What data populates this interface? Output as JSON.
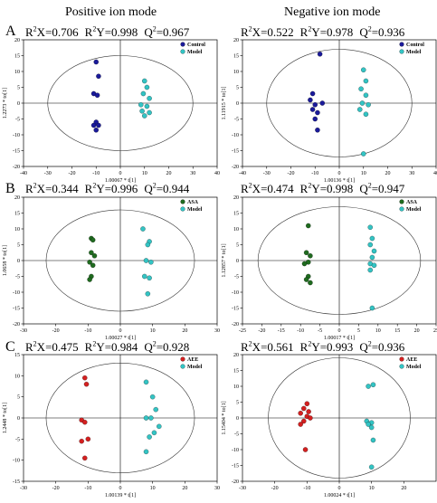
{
  "titles": {
    "left": "Positive ion mode",
    "right": "Negative ion mode"
  },
  "row_letters": [
    "A",
    "B",
    "C"
  ],
  "colors": {
    "control": "#1a1a9a",
    "model": "#33c4c4",
    "asa": "#1f6b1f",
    "aee": "#d42020"
  },
  "chart_data": [
    {
      "id": "A-pos",
      "type": "scatter",
      "row": 0,
      "col": 0,
      "stats": {
        "r2x": "=0.706",
        "r2y": "=0.998",
        "q2": "=0.967"
      },
      "xlabel": "1.00067 * t[1]",
      "ylabel": "1.2273 * to[1]",
      "xlim": [
        -40,
        40
      ],
      "ylim": [
        -20,
        20
      ],
      "xticks": [
        -40,
        -30,
        -20,
        -10,
        0,
        10,
        20,
        30,
        40
      ],
      "yticks": [
        -20,
        -15,
        -10,
        -5,
        0,
        5,
        10,
        15,
        20
      ],
      "ellipse": {
        "rx": 30,
        "ry": 15
      },
      "series": [
        {
          "name": "Control",
          "color": "#1a1a9a",
          "points": [
            [
              -10,
              13
            ],
            [
              -9,
              8.5
            ],
            [
              -11,
              3
            ],
            [
              -9.5,
              2.5
            ],
            [
              -10,
              -6
            ],
            [
              -11,
              -7
            ],
            [
              -9,
              -7
            ],
            [
              -10,
              -8.5
            ]
          ]
        },
        {
          "name": "Model",
          "color": "#33c4c4",
          "points": [
            [
              10,
              7
            ],
            [
              11,
              5
            ],
            [
              9.5,
              3
            ],
            [
              12,
              1.5
            ],
            [
              8.5,
              -0.5
            ],
            [
              11,
              -1
            ],
            [
              9,
              -2.5
            ],
            [
              12,
              -3
            ],
            [
              10,
              -4
            ]
          ]
        }
      ]
    },
    {
      "id": "A-neg",
      "type": "scatter",
      "row": 0,
      "col": 1,
      "stats": {
        "r2x": "=0.522",
        "r2y": "=0.978",
        "q2": "=0.936"
      },
      "xlabel": "1.00136 * t[1]",
      "ylabel": "1.11915 * to[1]",
      "xlim": [
        -40,
        40
      ],
      "ylim": [
        -20,
        20
      ],
      "xticks": [
        -40,
        -30,
        -20,
        -10,
        0,
        10,
        20,
        30,
        40
      ],
      "yticks": [
        -20,
        -15,
        -10,
        -5,
        0,
        5,
        10,
        15,
        20
      ],
      "ellipse": {
        "rx": 30,
        "ry": 17
      },
      "series": [
        {
          "name": "Control",
          "color": "#1a1a9a",
          "points": [
            [
              -8,
              15.5
            ],
            [
              -11,
              3
            ],
            [
              -12,
              1
            ],
            [
              -7,
              0
            ],
            [
              -10,
              -0.5
            ],
            [
              -11,
              -2
            ],
            [
              -9,
              -3
            ],
            [
              -10,
              -5
            ],
            [
              -9,
              -8.5
            ]
          ]
        },
        {
          "name": "Model",
          "color": "#33c4c4",
          "points": [
            [
              10,
              10.5
            ],
            [
              11,
              7
            ],
            [
              9,
              4.5
            ],
            [
              11,
              2.5
            ],
            [
              9.5,
              0
            ],
            [
              12,
              -0.5
            ],
            [
              8.5,
              -2
            ],
            [
              11,
              -3.5
            ],
            [
              10,
              -16
            ]
          ]
        }
      ]
    },
    {
      "id": "B-pos",
      "type": "scatter",
      "row": 1,
      "col": 0,
      "stats": {
        "r2x": "=0.344",
        "r2y": "=0.996",
        "q2": "=0.944"
      },
      "xlabel": "1.00027 * t[1]",
      "ylabel": "1.0658 * to[1]",
      "xlim": [
        -30,
        30
      ],
      "ylim": [
        -20,
        20
      ],
      "xticks": [
        -30,
        -20,
        -10,
        0,
        10,
        20,
        30
      ],
      "yticks": [
        -20,
        -15,
        -10,
        -5,
        0,
        5,
        10,
        15,
        20
      ],
      "ellipse": {
        "rx": 23,
        "ry": 16
      },
      "series": [
        {
          "name": "ASA",
          "color": "#1f6b1f",
          "points": [
            [
              -9,
              7
            ],
            [
              -8.5,
              6.5
            ],
            [
              -9,
              2.5
            ],
            [
              -8,
              1.5
            ],
            [
              -9.5,
              -0.5
            ],
            [
              -8.5,
              -1.5
            ],
            [
              -9,
              -5
            ],
            [
              -9.5,
              -6
            ]
          ]
        },
        {
          "name": "Model",
          "color": "#33c4c4",
          "points": [
            [
              7,
              10
            ],
            [
              9,
              6
            ],
            [
              8.5,
              5
            ],
            [
              8,
              0
            ],
            [
              9.5,
              -0.5
            ],
            [
              7.5,
              -5
            ],
            [
              9,
              -5.5
            ],
            [
              8.5,
              -10.5
            ]
          ]
        }
      ]
    },
    {
      "id": "B-neg",
      "type": "scatter",
      "row": 1,
      "col": 1,
      "stats": {
        "r2x": "=0.474",
        "r2y": "=0.998",
        "q2": "=0.947"
      },
      "xlabel": "1.00017 * t[1]",
      "ylabel": "1.12857 * to[1]",
      "xlim": [
        -25,
        25
      ],
      "ylim": [
        -20,
        20
      ],
      "xticks": [
        -25,
        -20,
        -15,
        -10,
        -5,
        0,
        5,
        10,
        15,
        20,
        25
      ],
      "yticks": [
        -20,
        -15,
        -10,
        -5,
        0,
        5,
        10,
        15,
        20
      ],
      "ellipse": {
        "rx": 21,
        "ry": 17
      },
      "series": [
        {
          "name": "ASA",
          "color": "#1f6b1f",
          "points": [
            [
              -8,
              11
            ],
            [
              -8.5,
              2.5
            ],
            [
              -7.5,
              1.5
            ],
            [
              -8,
              -0.5
            ],
            [
              -9,
              -1
            ],
            [
              -8,
              -5
            ],
            [
              -8.5,
              -6
            ],
            [
              -7.5,
              -7
            ]
          ]
        },
        {
          "name": "Model",
          "color": "#33c4c4",
          "points": [
            [
              8,
              10.5
            ],
            [
              8.5,
              7
            ],
            [
              8,
              5
            ],
            [
              9,
              3
            ],
            [
              8.5,
              1
            ],
            [
              8,
              -1
            ],
            [
              9,
              -1.5
            ],
            [
              8,
              -3
            ],
            [
              8.5,
              -15
            ]
          ]
        }
      ]
    },
    {
      "id": "C-pos",
      "type": "scatter",
      "row": 2,
      "col": 0,
      "stats": {
        "r2x": "=0.475",
        "r2y": "=0.984",
        "q2": "=0.928"
      },
      "xlabel": "1.00139 * t[1]",
      "ylabel": "1.2448 * to[1]",
      "xlim": [
        -30,
        30
      ],
      "ylim": [
        -15,
        15
      ],
      "xticks": [
        -30,
        -20,
        -10,
        0,
        10,
        20,
        30
      ],
      "yticks": [
        -15,
        -10,
        -5,
        0,
        5,
        10,
        15
      ],
      "ellipse": {
        "rx": 23,
        "ry": 13
      },
      "series": [
        {
          "name": "AEE",
          "color": "#d42020",
          "points": [
            [
              -11,
              9.5
            ],
            [
              -10.5,
              8
            ],
            [
              -12,
              -0.5
            ],
            [
              -11,
              -1
            ],
            [
              -12,
              -5.5
            ],
            [
              -10,
              -5
            ],
            [
              -11,
              -9.5
            ]
          ]
        },
        {
          "name": "Model",
          "color": "#33c4c4",
          "points": [
            [
              8,
              8.5
            ],
            [
              10,
              5
            ],
            [
              11,
              2
            ],
            [
              8,
              0
            ],
            [
              9.5,
              0
            ],
            [
              12,
              -2
            ],
            [
              10.5,
              -3.5
            ],
            [
              9,
              -4.5
            ],
            [
              8,
              -8
            ]
          ]
        }
      ]
    },
    {
      "id": "C-neg",
      "type": "scatter",
      "row": 2,
      "col": 1,
      "stats": {
        "r2x": "=0.561",
        "r2y": "=0.993",
        "q2": "=0.936"
      },
      "xlabel": "1.00024 * t[1]",
      "ylabel": "1.15404 * to[1]",
      "xlim": [
        -30,
        30
      ],
      "ylim": [
        -20,
        20
      ],
      "xticks": [
        -30,
        -20,
        -10,
        0,
        10,
        20
      ],
      "yticks": [
        -20,
        -15,
        -10,
        -5,
        0,
        5,
        10,
        15,
        20
      ],
      "ellipse": {
        "rx": 22,
        "ry": 19
      },
      "series": [
        {
          "name": "AEE",
          "color": "#d42020",
          "points": [
            [
              -10,
              4.5
            ],
            [
              -11,
              3
            ],
            [
              -9.5,
              2
            ],
            [
              -12,
              1.5
            ],
            [
              -10,
              0.5
            ],
            [
              -9,
              0
            ],
            [
              -11,
              -1
            ],
            [
              -12,
              -2
            ],
            [
              -10.5,
              -10
            ]
          ]
        },
        {
          "name": "Model",
          "color": "#33c4c4",
          "points": [
            [
              9,
              10
            ],
            [
              10.5,
              10.5
            ],
            [
              8.5,
              -1
            ],
            [
              10,
              -1.5
            ],
            [
              9,
              -2
            ],
            [
              10,
              -3
            ],
            [
              10.5,
              -7
            ],
            [
              10,
              -15.5
            ]
          ]
        }
      ]
    }
  ]
}
